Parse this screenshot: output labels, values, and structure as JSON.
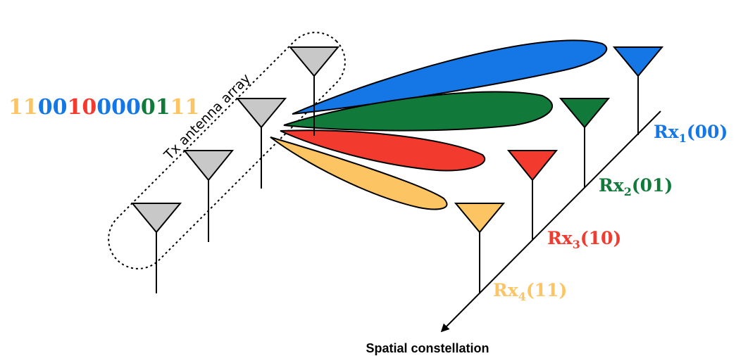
{
  "tx_array_label": "Tx antenna array",
  "bit_stream": [
    {
      "text": "11",
      "color": "#fcc463"
    },
    {
      "text": "00",
      "color": "#1577e5"
    },
    {
      "text": "10",
      "color": "#f23a2e"
    },
    {
      "text": "000",
      "color": "#1577e5"
    },
    {
      "text": "01",
      "color": "#117a3b"
    },
    {
      "text": "11",
      "color": "#fcc463"
    }
  ],
  "receivers": [
    {
      "name": "Rx",
      "index": "1",
      "bits": "(00)",
      "color": "#1577e5"
    },
    {
      "name": "Rx",
      "index": "2",
      "bits": "(01)",
      "color": "#117a3b"
    },
    {
      "name": "Rx",
      "index": "3",
      "bits": "(10)",
      "color": "#f23a2e"
    },
    {
      "name": "Rx",
      "index": "4",
      "bits": "(11)",
      "color": "#fcc463"
    }
  ],
  "axis_label": "Spatial constellation",
  "colors": {
    "tx_antenna_fill": "#c8c8c8",
    "outline": "#000000"
  }
}
